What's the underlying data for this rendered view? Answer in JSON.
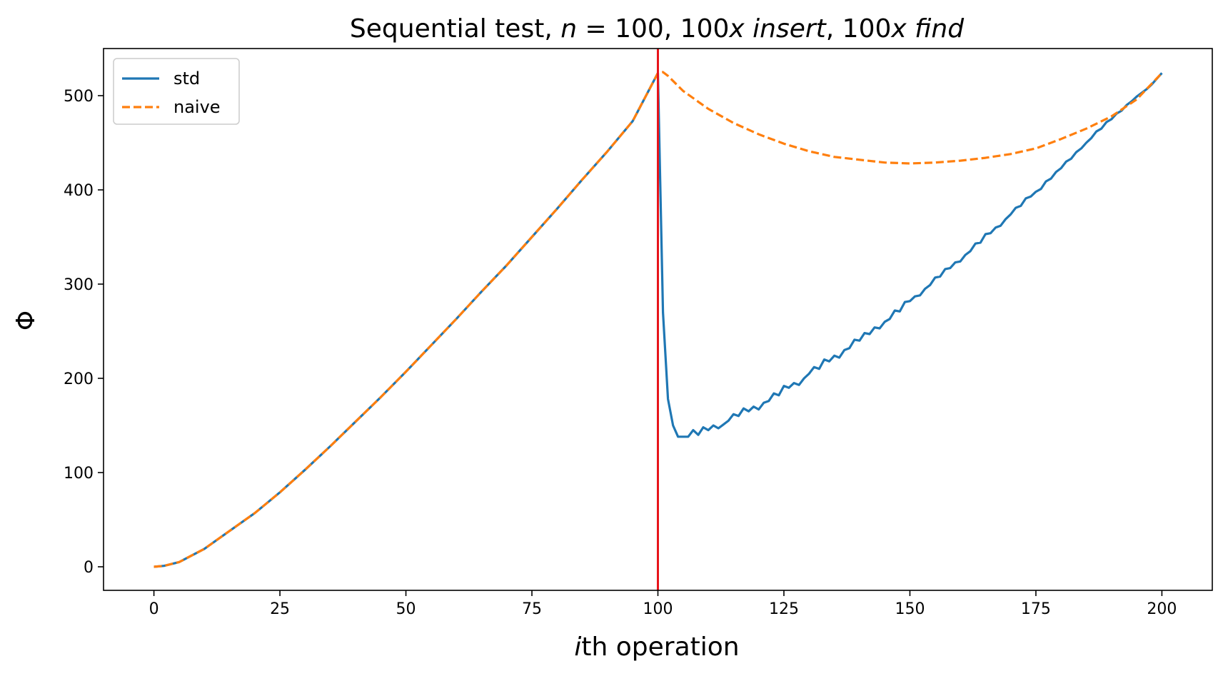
{
  "chart_data": {
    "type": "line",
    "title_parts": [
      {
        "text": "Sequential test, ",
        "italic": false
      },
      {
        "text": "n",
        "italic": true
      },
      {
        "text": " = 100, 100",
        "italic": false
      },
      {
        "text": "x insert",
        "italic": true
      },
      {
        "text": ", 100",
        "italic": false
      },
      {
        "text": "x find",
        "italic": true
      }
    ],
    "xlabel_parts": [
      {
        "text": "i",
        "italic": true
      },
      {
        "text": "th operation",
        "italic": false
      }
    ],
    "ylabel": "Φ",
    "xlim": [
      -10,
      210
    ],
    "ylim": [
      -25,
      550
    ],
    "xticks": [
      0,
      25,
      50,
      75,
      100,
      125,
      150,
      175,
      200
    ],
    "yticks": [
      0,
      100,
      200,
      300,
      400,
      500
    ],
    "grid": false,
    "legend_position": "top-left",
    "vline": {
      "x": 100,
      "color": "#e8141b"
    },
    "series": [
      {
        "name": "std",
        "color": "#1f77b4",
        "style": "solid",
        "x": [
          0,
          2,
          5,
          10,
          15,
          20,
          25,
          30,
          35,
          40,
          45,
          50,
          55,
          60,
          65,
          70,
          75,
          80,
          85,
          90,
          95,
          100,
          101,
          102,
          103,
          104,
          105,
          106,
          107,
          108,
          109,
          110,
          111,
          112,
          113,
          114,
          115,
          116,
          117,
          118,
          119,
          120,
          121,
          122,
          123,
          124,
          125,
          126,
          127,
          128,
          129,
          130,
          131,
          132,
          133,
          134,
          135,
          136,
          137,
          138,
          139,
          140,
          141,
          142,
          143,
          144,
          145,
          146,
          147,
          148,
          149,
          150,
          151,
          152,
          153,
          154,
          155,
          156,
          157,
          158,
          159,
          160,
          161,
          162,
          163,
          164,
          165,
          166,
          167,
          168,
          169,
          170,
          171,
          172,
          173,
          174,
          175,
          176,
          177,
          178,
          179,
          180,
          181,
          182,
          183,
          184,
          185,
          186,
          187,
          188,
          189,
          190,
          191,
          192,
          193,
          194,
          195,
          196,
          197,
          198,
          199,
          200
        ],
        "y": [
          0,
          1,
          5,
          19,
          38,
          57,
          79,
          103,
          128,
          154,
          180,
          207,
          235,
          263,
          292,
          320,
          350,
          380,
          411,
          441,
          473,
          524,
          270,
          178,
          150,
          138,
          138,
          138,
          145,
          140,
          148,
          145,
          150,
          147,
          151,
          155,
          162,
          160,
          168,
          165,
          170,
          167,
          174,
          176,
          184,
          182,
          192,
          190,
          195,
          193,
          200,
          205,
          212,
          210,
          220,
          218,
          224,
          222,
          230,
          232,
          241,
          240,
          248,
          247,
          254,
          253,
          260,
          263,
          272,
          271,
          281,
          282,
          287,
          288,
          295,
          299,
          307,
          308,
          316,
          317,
          323,
          324,
          331,
          335,
          343,
          344,
          353,
          354,
          360,
          362,
          369,
          374,
          381,
          383,
          391,
          393,
          398,
          401,
          409,
          412,
          419,
          423,
          430,
          433,
          440,
          444,
          450,
          455,
          462,
          465,
          472,
          475,
          481,
          484,
          490,
          494,
          499,
          503,
          507,
          512,
          518,
          524
        ]
      },
      {
        "name": "naive",
        "color": "#ff7f0e",
        "style": "dashed",
        "x": [
          0,
          2,
          5,
          10,
          15,
          20,
          25,
          30,
          35,
          40,
          45,
          50,
          55,
          60,
          65,
          70,
          75,
          80,
          85,
          90,
          95,
          100,
          101,
          102,
          105,
          110,
          115,
          120,
          125,
          130,
          135,
          140,
          145,
          150,
          155,
          160,
          165,
          170,
          175,
          180,
          185,
          190,
          195,
          200
        ],
        "y": [
          0,
          1,
          5,
          19,
          38,
          57,
          79,
          103,
          128,
          154,
          180,
          207,
          235,
          263,
          292,
          320,
          350,
          380,
          411,
          441,
          473,
          524,
          525,
          521,
          505,
          486,
          471,
          459,
          449,
          441,
          435,
          432,
          429,
          428,
          429,
          431,
          434,
          438,
          444,
          454,
          465,
          478,
          496,
          524
        ]
      }
    ]
  }
}
